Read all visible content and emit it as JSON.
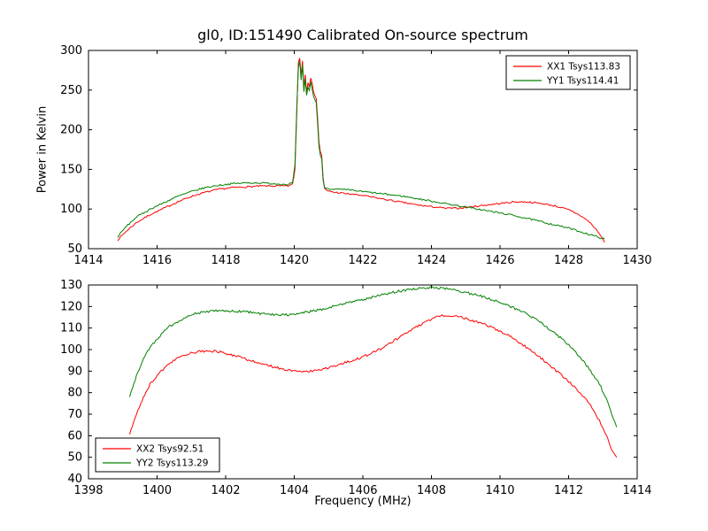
{
  "figure": {
    "title": "gl0, ID:151490 Calibrated On-source spectrum",
    "xlabel": "Frequency (MHz)",
    "ylabel": "Power in Kelvin",
    "background": "#ffffff",
    "frame_color": "#000000"
  },
  "chart_data": [
    {
      "type": "line",
      "title": "gl0, ID:151490 Calibrated On-source spectrum",
      "xlabel": "",
      "ylabel": "Power in Kelvin",
      "xlim": [
        1414,
        1430
      ],
      "ylim": [
        50,
        300
      ],
      "xticks": [
        1414,
        1416,
        1418,
        1420,
        1422,
        1424,
        1426,
        1428,
        1430
      ],
      "yticks": [
        50,
        100,
        150,
        200,
        250,
        300
      ],
      "grid": false,
      "legend": {
        "position": "upper-right",
        "entries": [
          "XX1 Tsys113.83",
          "YY1 Tsys114.41"
        ]
      },
      "series": [
        {
          "name": "XX1 Tsys113.83",
          "color": "#ff0000",
          "points": [
            [
              1414.85,
              61
            ],
            [
              1415.1,
              72
            ],
            [
              1415.4,
              83
            ],
            [
              1415.8,
              93
            ],
            [
              1416.2,
              101
            ],
            [
              1416.6,
              109
            ],
            [
              1417.0,
              116
            ],
            [
              1417.4,
              121
            ],
            [
              1417.8,
              125
            ],
            [
              1418.2,
              127
            ],
            [
              1418.6,
              128
            ],
            [
              1419.0,
              129
            ],
            [
              1419.4,
              129
            ],
            [
              1419.8,
              129
            ],
            [
              1419.95,
              131
            ],
            [
              1420.02,
              150
            ],
            [
              1420.08,
              230
            ],
            [
              1420.12,
              285
            ],
            [
              1420.16,
              291
            ],
            [
              1420.2,
              268
            ],
            [
              1420.24,
              287
            ],
            [
              1420.28,
              252
            ],
            [
              1420.32,
              270
            ],
            [
              1420.36,
              248
            ],
            [
              1420.4,
              260
            ],
            [
              1420.44,
              255
            ],
            [
              1420.48,
              266
            ],
            [
              1420.52,
              258
            ],
            [
              1420.56,
              247
            ],
            [
              1420.6,
              244
            ],
            [
              1420.64,
              240
            ],
            [
              1420.68,
              215
            ],
            [
              1420.72,
              185
            ],
            [
              1420.76,
              172
            ],
            [
              1420.8,
              168
            ],
            [
              1420.84,
              140
            ],
            [
              1420.88,
              126
            ],
            [
              1420.95,
              123
            ],
            [
              1421.2,
              121
            ],
            [
              1421.6,
              119
            ],
            [
              1422.0,
              117
            ],
            [
              1422.4,
              114
            ],
            [
              1422.8,
              111
            ],
            [
              1423.2,
              108
            ],
            [
              1423.6,
              105
            ],
            [
              1424.0,
              103
            ],
            [
              1424.4,
              101
            ],
            [
              1424.8,
              101
            ],
            [
              1425.2,
              103
            ],
            [
              1425.6,
              105
            ],
            [
              1426.0,
              107
            ],
            [
              1426.4,
              109
            ],
            [
              1426.8,
              109
            ],
            [
              1427.2,
              107
            ],
            [
              1427.6,
              104
            ],
            [
              1428.0,
              99
            ],
            [
              1428.3,
              93
            ],
            [
              1428.6,
              84
            ],
            [
              1428.85,
              72
            ],
            [
              1429.05,
              58
            ]
          ]
        },
        {
          "name": "YY1 Tsys114.41",
          "color": "#008000",
          "points": [
            [
              1414.85,
              65
            ],
            [
              1415.1,
              78
            ],
            [
              1415.4,
              90
            ],
            [
              1415.8,
              100
            ],
            [
              1416.2,
              108
            ],
            [
              1416.6,
              116
            ],
            [
              1417.0,
              122
            ],
            [
              1417.4,
              127
            ],
            [
              1417.8,
              130
            ],
            [
              1418.2,
              132
            ],
            [
              1418.6,
              133
            ],
            [
              1419.0,
              133
            ],
            [
              1419.4,
              132
            ],
            [
              1419.8,
              131
            ],
            [
              1419.95,
              133
            ],
            [
              1420.02,
              155
            ],
            [
              1420.08,
              235
            ],
            [
              1420.12,
              278
            ],
            [
              1420.16,
              286
            ],
            [
              1420.2,
              262
            ],
            [
              1420.24,
              281
            ],
            [
              1420.28,
              247
            ],
            [
              1420.32,
              264
            ],
            [
              1420.36,
              243
            ],
            [
              1420.4,
              254
            ],
            [
              1420.44,
              250
            ],
            [
              1420.48,
              260
            ],
            [
              1420.52,
              252
            ],
            [
              1420.56,
              242
            ],
            [
              1420.6,
              239
            ],
            [
              1420.64,
              234
            ],
            [
              1420.68,
              208
            ],
            [
              1420.72,
              180
            ],
            [
              1420.76,
              168
            ],
            [
              1420.8,
              163
            ],
            [
              1420.84,
              136
            ],
            [
              1420.88,
              128
            ],
            [
              1420.95,
              126
            ],
            [
              1421.2,
              125
            ],
            [
              1421.6,
              124
            ],
            [
              1422.0,
              122
            ],
            [
              1422.4,
              120
            ],
            [
              1422.8,
              118
            ],
            [
              1423.2,
              116
            ],
            [
              1423.6,
              113
            ],
            [
              1424.0,
              110
            ],
            [
              1424.4,
              107
            ],
            [
              1424.8,
              104
            ],
            [
              1425.2,
              101
            ],
            [
              1425.6,
              98
            ],
            [
              1426.0,
              95
            ],
            [
              1426.4,
              92
            ],
            [
              1426.8,
              88
            ],
            [
              1427.2,
              84
            ],
            [
              1427.6,
              80
            ],
            [
              1428.0,
              76
            ],
            [
              1428.3,
              72
            ],
            [
              1428.6,
              68
            ],
            [
              1428.85,
              65
            ],
            [
              1429.05,
              62
            ]
          ]
        }
      ]
    },
    {
      "type": "line",
      "title": "",
      "xlabel": "Frequency (MHz)",
      "ylabel": "",
      "xlim": [
        1398,
        1414
      ],
      "ylim": [
        40,
        130
      ],
      "xticks": [
        1398,
        1400,
        1402,
        1404,
        1406,
        1408,
        1410,
        1412,
        1414
      ],
      "yticks": [
        40,
        50,
        60,
        70,
        80,
        90,
        100,
        110,
        120,
        130
      ],
      "grid": false,
      "legend": {
        "position": "lower-left",
        "entries": [
          "XX2 Tsys92.51",
          "YY2 Tsys113.29"
        ]
      },
      "series": [
        {
          "name": "XX2 Tsys92.51",
          "color": "#ff0000",
          "points": [
            [
              1399.2,
              61
            ],
            [
              1399.4,
              70
            ],
            [
              1399.6,
              78
            ],
            [
              1399.8,
              84
            ],
            [
              1400.0,
              88
            ],
            [
              1400.3,
              93
            ],
            [
              1400.6,
              96
            ],
            [
              1400.9,
              98
            ],
            [
              1401.2,
              99
            ],
            [
              1401.5,
              99.5
            ],
            [
              1401.8,
              99
            ],
            [
              1402.2,
              97.5
            ],
            [
              1402.6,
              95.5
            ],
            [
              1403.0,
              93.5
            ],
            [
              1403.4,
              92
            ],
            [
              1403.8,
              90.5
            ],
            [
              1404.2,
              90
            ],
            [
              1404.6,
              90.2
            ],
            [
              1405.0,
              91.5
            ],
            [
              1405.4,
              93.5
            ],
            [
              1405.8,
              95.5
            ],
            [
              1406.2,
              98
            ],
            [
              1406.6,
              101
            ],
            [
              1407.0,
              105
            ],
            [
              1407.4,
              109
            ],
            [
              1407.8,
              112.5
            ],
            [
              1408.1,
              115
            ],
            [
              1408.4,
              116
            ],
            [
              1408.7,
              115.5
            ],
            [
              1409.0,
              114.5
            ],
            [
              1409.4,
              112.5
            ],
            [
              1409.8,
              110
            ],
            [
              1410.2,
              107
            ],
            [
              1410.6,
              103
            ],
            [
              1411.0,
              98.5
            ],
            [
              1411.4,
              93.5
            ],
            [
              1411.8,
              88
            ],
            [
              1412.2,
              82
            ],
            [
              1412.6,
              75
            ],
            [
              1412.9,
              67
            ],
            [
              1413.1,
              60
            ],
            [
              1413.3,
              52
            ],
            [
              1413.4,
              50
            ]
          ]
        },
        {
          "name": "YY2 Tsys113.29",
          "color": "#008000",
          "points": [
            [
              1399.2,
              78
            ],
            [
              1399.4,
              88
            ],
            [
              1399.6,
              96
            ],
            [
              1399.8,
              101
            ],
            [
              1400.0,
              105
            ],
            [
              1400.3,
              110
            ],
            [
              1400.6,
              113
            ],
            [
              1400.9,
              115.5
            ],
            [
              1401.2,
              117
            ],
            [
              1401.5,
              117.8
            ],
            [
              1401.8,
              118
            ],
            [
              1402.2,
              118
            ],
            [
              1402.6,
              117.5
            ],
            [
              1403.0,
              116.8
            ],
            [
              1403.4,
              116.2
            ],
            [
              1403.8,
              116.2
            ],
            [
              1404.2,
              117
            ],
            [
              1404.6,
              118
            ],
            [
              1405.0,
              119.5
            ],
            [
              1405.4,
              121
            ],
            [
              1405.8,
              122.5
            ],
            [
              1406.2,
              124
            ],
            [
              1406.6,
              125.5
            ],
            [
              1407.0,
              127
            ],
            [
              1407.4,
              128
            ],
            [
              1407.8,
              128.8
            ],
            [
              1408.1,
              128.8
            ],
            [
              1408.4,
              128.3
            ],
            [
              1408.7,
              127.5
            ],
            [
              1409.0,
              126.5
            ],
            [
              1409.4,
              125
            ],
            [
              1409.8,
              123
            ],
            [
              1410.2,
              120.5
            ],
            [
              1410.6,
              118
            ],
            [
              1411.0,
              114.5
            ],
            [
              1411.4,
              110
            ],
            [
              1411.8,
              105
            ],
            [
              1412.2,
              99
            ],
            [
              1412.6,
              91
            ],
            [
              1412.9,
              84
            ],
            [
              1413.1,
              77
            ],
            [
              1413.3,
              68
            ],
            [
              1413.4,
              64
            ]
          ]
        }
      ]
    }
  ]
}
